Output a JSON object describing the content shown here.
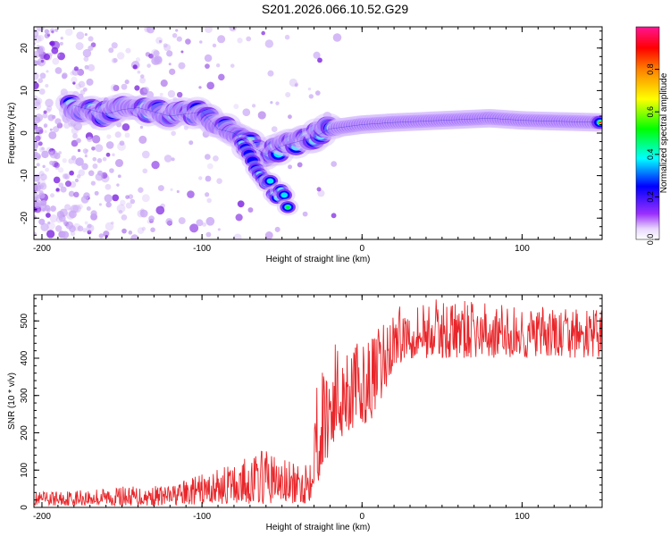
{
  "title": "S201.2026.066.10.52.G29",
  "chart_data": [
    {
      "type": "heatmap",
      "xlabel": "Height of straight line (km)",
      "ylabel": "Frequency (Hz)",
      "xlim": [
        -205,
        150
      ],
      "ylim": [
        -25,
        25
      ],
      "xticks": [
        -200,
        -100,
        0,
        100
      ],
      "yticks": [
        -20,
        -10,
        0,
        10,
        20
      ],
      "colorbar": {
        "label": "Normalized spectral amplitude",
        "range": [
          0,
          1
        ],
        "ticks": [
          0.0,
          0.2,
          0.4,
          0.6,
          0.8
        ]
      },
      "ridge": [
        {
          "x": -180,
          "y": 6.5
        },
        {
          "x": -170,
          "y": 5.5
        },
        {
          "x": -160,
          "y": 4.5
        },
        {
          "x": -150,
          "y": 5.5
        },
        {
          "x": -140,
          "y": 6
        },
        {
          "x": -130,
          "y": 5
        },
        {
          "x": -120,
          "y": 4
        },
        {
          "x": -110,
          "y": 4.5
        },
        {
          "x": -100,
          "y": 5
        },
        {
          "x": -90,
          "y": 1
        },
        {
          "x": -80,
          "y": 0
        },
        {
          "x": -70,
          "y": -3
        },
        {
          "x": -60,
          "y": -5
        },
        {
          "x": -50,
          "y": -3
        },
        {
          "x": -40,
          "y": -2
        },
        {
          "x": -30,
          "y": -1
        },
        {
          "x": -20,
          "y": 1
        },
        {
          "x": -10,
          "y": 1.5
        },
        {
          "x": 0,
          "y": 2
        },
        {
          "x": 20,
          "y": 2.5
        },
        {
          "x": 50,
          "y": 3
        },
        {
          "x": 80,
          "y": 3.5
        },
        {
          "x": 100,
          "y": 3
        },
        {
          "x": 150,
          "y": 2.5
        }
      ],
      "branch": [
        {
          "x": -75,
          "y": -3
        },
        {
          "x": -65,
          "y": -8
        },
        {
          "x": -55,
          "y": -13
        },
        {
          "x": -45,
          "y": -17
        }
      ]
    },
    {
      "type": "line",
      "xlabel": "Height of straight line (km)",
      "ylabel": "SNR (10 * v/v)",
      "xlim": [
        -205,
        150
      ],
      "ylim": [
        0,
        570
      ],
      "xticks": [
        -200,
        -100,
        0,
        100
      ],
      "yticks": [
        0,
        100,
        200,
        300,
        400,
        500
      ],
      "color": "#e8262a",
      "envelope": [
        {
          "x": -205,
          "lo": 5,
          "hi": 40
        },
        {
          "x": -160,
          "lo": 5,
          "hi": 55
        },
        {
          "x": -120,
          "lo": 5,
          "hi": 60
        },
        {
          "x": -100,
          "lo": 8,
          "hi": 90
        },
        {
          "x": -80,
          "lo": 10,
          "hi": 120
        },
        {
          "x": -60,
          "lo": 10,
          "hi": 160
        },
        {
          "x": -40,
          "lo": 10,
          "hi": 110
        },
        {
          "x": -33,
          "lo": 10,
          "hi": 150
        },
        {
          "x": -30,
          "lo": 60,
          "hi": 330
        },
        {
          "x": -25,
          "lo": 80,
          "hi": 380
        },
        {
          "x": -20,
          "lo": 150,
          "hi": 440
        },
        {
          "x": -10,
          "lo": 200,
          "hi": 470
        },
        {
          "x": 0,
          "lo": 220,
          "hi": 430
        },
        {
          "x": 10,
          "lo": 250,
          "hi": 480
        },
        {
          "x": 20,
          "lo": 380,
          "hi": 530
        },
        {
          "x": 30,
          "lo": 400,
          "hi": 560
        },
        {
          "x": 60,
          "lo": 400,
          "hi": 555
        },
        {
          "x": 100,
          "lo": 400,
          "hi": 540
        },
        {
          "x": 150,
          "lo": 400,
          "hi": 530
        }
      ]
    }
  ]
}
